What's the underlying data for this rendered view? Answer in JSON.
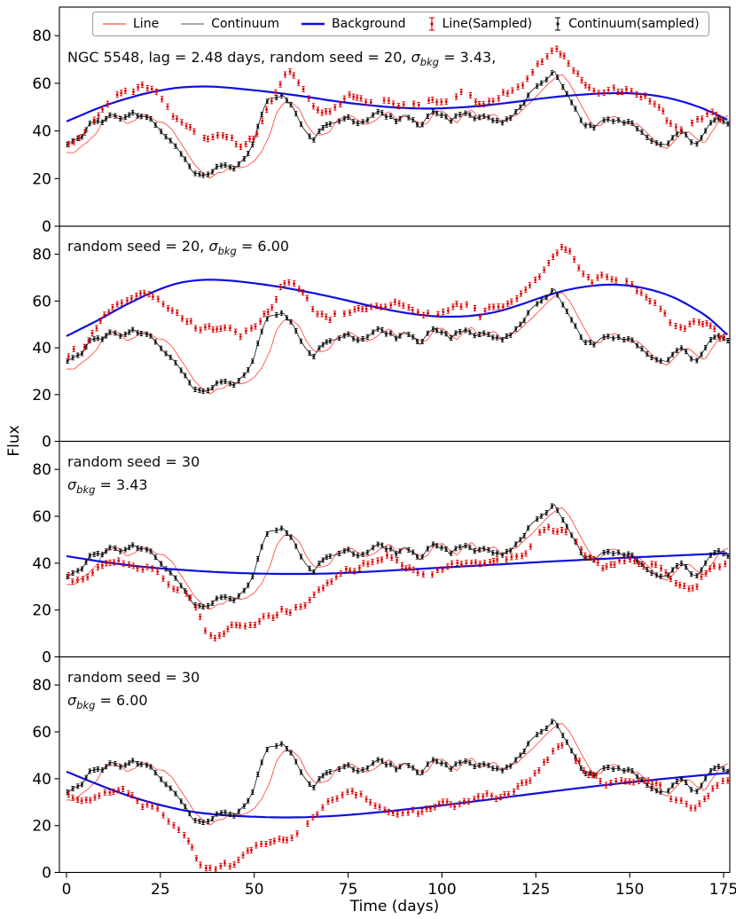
{
  "chart_data": {
    "type": "line",
    "xlabel": "Time (days)",
    "ylabel": "Flux",
    "x_ticks": [
      0,
      25,
      50,
      75,
      100,
      125,
      150,
      175
    ],
    "y_ticks": [
      0,
      20,
      40,
      60,
      80
    ],
    "xlim": [
      -2,
      176.7
    ],
    "ylim": [
      0,
      92
    ],
    "grid": false,
    "legend_position": "top",
    "colors": {
      "line": "#ff3b35",
      "continuum": "#222222",
      "background": "#0f0fe0",
      "line_sampled": "#dd0000",
      "continuum_sampled": "#101010"
    },
    "legend": [
      {
        "label": "Line",
        "swatch": "line",
        "color": "#ff4a42"
      },
      {
        "label": "Continuum",
        "swatch": "line",
        "color": "#777777"
      },
      {
        "label": "Background",
        "swatch": "line-thick",
        "color": "#0f0fe0"
      },
      {
        "label": "Line(Sampled)",
        "swatch": "errorbar",
        "color": "#dd0000"
      },
      {
        "label": "Continuum(sampled)",
        "swatch": "errorbar",
        "color": "#101010"
      }
    ],
    "shared_series": {
      "continuum": {
        "t0": 0,
        "dt": 2,
        "values": [
          34,
          36,
          37,
          42,
          44,
          45,
          47,
          45,
          46,
          47,
          46,
          45,
          43,
          39,
          36,
          32,
          27,
          23,
          21,
          22,
          24,
          25,
          24,
          26,
          30,
          37,
          46,
          54,
          55,
          54,
          51,
          44,
          38,
          37,
          40,
          43,
          45,
          46,
          44,
          43,
          45,
          47,
          48,
          46,
          45,
          47,
          44,
          41,
          46,
          49,
          47,
          44,
          46,
          48,
          46,
          45,
          47,
          45,
          43,
          46,
          49,
          52,
          56,
          59,
          62,
          64,
          59,
          54,
          48,
          43,
          41,
          44,
          46,
          45,
          43,
          44,
          42,
          38,
          35,
          33,
          34,
          38,
          40,
          37,
          34,
          39,
          43,
          46,
          44
        ]
      },
      "line": {
        "t0": 0,
        "dt": 2,
        "values": [
          31,
          32,
          33,
          36,
          40,
          44,
          45,
          46,
          44,
          45,
          46,
          46,
          44,
          43,
          41,
          37,
          32,
          27,
          23,
          20,
          21,
          24,
          26,
          25,
          26,
          28,
          32,
          39,
          47,
          52,
          52,
          49,
          43,
          39,
          38,
          40,
          44,
          46,
          46,
          44,
          43,
          45,
          47,
          48,
          46,
          45,
          46,
          42,
          43,
          47,
          49,
          46,
          44,
          47,
          48,
          45,
          46,
          47,
          44,
          45,
          47,
          50,
          53,
          56,
          59,
          62,
          63,
          60,
          54,
          48,
          43,
          42,
          45,
          46,
          44,
          43,
          44,
          41,
          38,
          34,
          33,
          36,
          40,
          40,
          36,
          36,
          40,
          44,
          46
        ]
      }
    },
    "panels": [
      {
        "annotation": {
          "lines": [
            {
              "pre": "NGC 5548, lag = 2.48 days, random seed = 20, ",
              "sym": "σ",
              "sub": "bkg",
              "post": " = 3.43,"
            }
          ]
        },
        "background": {
          "points": [
            [
              0,
              44
            ],
            [
              10,
              50.5
            ],
            [
              20,
              55.3
            ],
            [
              28,
              57.8
            ],
            [
              34,
              58.6
            ],
            [
              40,
              58.5
            ],
            [
              48,
              57.4
            ],
            [
              56,
              56
            ],
            [
              64,
              54.3
            ],
            [
              72,
              52.4
            ],
            [
              80,
              50.9
            ],
            [
              88,
              49.8
            ],
            [
              96,
              49.4
            ],
            [
              104,
              49.8
            ],
            [
              112,
              50.8
            ],
            [
              120,
              52.3
            ],
            [
              128,
              53.9
            ],
            [
              136,
              55.1
            ],
            [
              144,
              55.8
            ],
            [
              150,
              55.8
            ],
            [
              156,
              55
            ],
            [
              162,
              53.2
            ],
            [
              168,
              50.3
            ],
            [
              172,
              47.7
            ],
            [
              176.5,
              44.3
            ]
          ]
        },
        "line_sampled": {
          "t0": 0,
          "dt": 2,
          "values": [
            35,
            36,
            38,
            41,
            46,
            51,
            54,
            56,
            57,
            57,
            58,
            57,
            55,
            51,
            47,
            45,
            43,
            40,
            38,
            37,
            38,
            38,
            37,
            34,
            34,
            38,
            44,
            51,
            58,
            64,
            64,
            60,
            54,
            50,
            48,
            49,
            51,
            53,
            55,
            54,
            53,
            52,
            53,
            53,
            52,
            52,
            51,
            50,
            51,
            52,
            52,
            51,
            55,
            57,
            54,
            51,
            52,
            54,
            55,
            56,
            58,
            60,
            64,
            69,
            72,
            74,
            73,
            68,
            63,
            60,
            58,
            57,
            57,
            58,
            57,
            56,
            56,
            55,
            53,
            50,
            45,
            42,
            40,
            41,
            44,
            47,
            47,
            44,
            43
          ]
        }
      },
      {
        "annotation": {
          "lines": [
            {
              "pre": "random seed = 20, ",
              "sym": "σ",
              "sub": "bkg",
              "post": " = 6.00"
            }
          ]
        },
        "background": {
          "points": [
            [
              0,
              45
            ],
            [
              8,
              51.5
            ],
            [
              16,
              58.5
            ],
            [
              24,
              64.5
            ],
            [
              30,
              67.7
            ],
            [
              36,
              69
            ],
            [
              42,
              68.9
            ],
            [
              50,
              67.6
            ],
            [
              58,
              65.7
            ],
            [
              66,
              63.3
            ],
            [
              74,
              60.5
            ],
            [
              82,
              57.5
            ],
            [
              90,
              55
            ],
            [
              97,
              53.6
            ],
            [
              103,
              53.3
            ],
            [
              109,
              53.9
            ],
            [
              115,
              55.6
            ],
            [
              121,
              58.5
            ],
            [
              127,
              61.8
            ],
            [
              133,
              64.6
            ],
            [
              139,
              66.3
            ],
            [
              145,
              67
            ],
            [
              151,
              66.3
            ],
            [
              157,
              64.2
            ],
            [
              162,
              61.3
            ],
            [
              167,
              57
            ],
            [
              171,
              52.8
            ],
            [
              176.5,
              44.8
            ]
          ]
        },
        "line_sampled": {
          "t0": 0,
          "dt": 2,
          "values": [
            37,
            38,
            40,
            44,
            49,
            54,
            57,
            59,
            61,
            63,
            65,
            64,
            61,
            58,
            56,
            54,
            52,
            50,
            48,
            48,
            48,
            49,
            48,
            46,
            47,
            49,
            52,
            56,
            62,
            67,
            68,
            65,
            60,
            56,
            54,
            53,
            54,
            55,
            57,
            58,
            57,
            56,
            57,
            58,
            59,
            58,
            57,
            56,
            55,
            54,
            54,
            55,
            58,
            59,
            57,
            55,
            55,
            57,
            58,
            59,
            61,
            63,
            66,
            70,
            75,
            80,
            83,
            80,
            75,
            70,
            68,
            70,
            69,
            68,
            69,
            67,
            64,
            61,
            59,
            57,
            53,
            50,
            48,
            49,
            50,
            50,
            48,
            45,
            43
          ]
        }
      },
      {
        "annotation": {
          "lines": [
            {
              "pre": "random seed = 30",
              "sym": "",
              "sub": "",
              "post": ""
            },
            {
              "pre": "",
              "sym": "σ",
              "sub": "bkg",
              "post": " = 3.43"
            }
          ]
        },
        "background": {
          "points": [
            [
              0,
              43
            ],
            [
              10,
              40.5
            ],
            [
              20,
              38.5
            ],
            [
              30,
              37.2
            ],
            [
              40,
              36.2
            ],
            [
              50,
              35.6
            ],
            [
              60,
              35.4
            ],
            [
              70,
              35.6
            ],
            [
              80,
              36.3
            ],
            [
              90,
              37.2
            ],
            [
              100,
              38.1
            ],
            [
              110,
              39
            ],
            [
              120,
              39.9
            ],
            [
              130,
              40.8
            ],
            [
              140,
              41.6
            ],
            [
              150,
              42.4
            ],
            [
              160,
              43.1
            ],
            [
              170,
              43.8
            ],
            [
              176.5,
              44.3
            ]
          ]
        },
        "line_sampled": {
          "t0": 0,
          "dt": 2,
          "values": [
            34,
            33,
            33,
            36,
            38,
            39,
            39,
            40,
            38,
            37,
            36,
            37,
            36,
            33,
            30,
            29,
            26,
            22,
            14,
            10,
            9,
            12,
            13,
            12,
            14,
            15,
            16,
            17,
            18,
            19,
            20,
            21,
            23,
            26,
            29,
            31,
            33,
            35,
            37,
            38,
            39,
            40,
            41,
            42,
            40,
            38,
            37,
            35,
            36,
            37,
            38,
            38,
            39,
            40,
            39,
            38,
            39,
            40,
            40,
            41,
            42,
            44,
            48,
            52,
            54,
            55,
            54,
            52,
            49,
            45,
            42,
            40,
            39,
            40,
            41,
            41,
            40,
            40,
            39,
            38,
            36,
            33,
            31,
            30,
            31,
            34,
            38,
            40,
            41
          ]
        }
      },
      {
        "annotation": {
          "lines": [
            {
              "pre": "random seed = 30",
              "sym": "",
              "sub": "",
              "post": ""
            },
            {
              "pre": "",
              "sym": "σ",
              "sub": "bkg",
              "post": " = 6.00"
            }
          ]
        },
        "background": {
          "points": [
            [
              0,
              43
            ],
            [
              8,
              37.8
            ],
            [
              16,
              33
            ],
            [
              24,
              29.2
            ],
            [
              32,
              26.3
            ],
            [
              40,
              24.7
            ],
            [
              48,
              23.9
            ],
            [
              56,
              23.5
            ],
            [
              64,
              23.6
            ],
            [
              72,
              24.2
            ],
            [
              80,
              25.2
            ],
            [
              88,
              26.5
            ],
            [
              96,
              27.9
            ],
            [
              104,
              29.4
            ],
            [
              112,
              31
            ],
            [
              120,
              32.7
            ],
            [
              128,
              34.3
            ],
            [
              136,
              35.9
            ],
            [
              144,
              37.4
            ],
            [
              152,
              38.8
            ],
            [
              160,
              40.1
            ],
            [
              168,
              41.3
            ],
            [
              176.5,
              42.5
            ]
          ]
        },
        "line_sampled": {
          "t0": 0,
          "dt": 2,
          "values": [
            33,
            32,
            31,
            32,
            33,
            34,
            34,
            35,
            34,
            32,
            30,
            29,
            27,
            24,
            21,
            18,
            14,
            8,
            3,
            2,
            2,
            3,
            4,
            5,
            8,
            11,
            12,
            12,
            13,
            14,
            16,
            18,
            20,
            23,
            26,
            29,
            31,
            33,
            34,
            33,
            31,
            28,
            26,
            25,
            26,
            27,
            27,
            26,
            27,
            28,
            29,
            29,
            30,
            31,
            31,
            31,
            32,
            32,
            33,
            34,
            36,
            38,
            41,
            45,
            49,
            52,
            53,
            50,
            47,
            44,
            41,
            39,
            38,
            39,
            40,
            40,
            39,
            38,
            37,
            36,
            34,
            31,
            29,
            27,
            28,
            31,
            35,
            38,
            40
          ]
        }
      }
    ]
  }
}
